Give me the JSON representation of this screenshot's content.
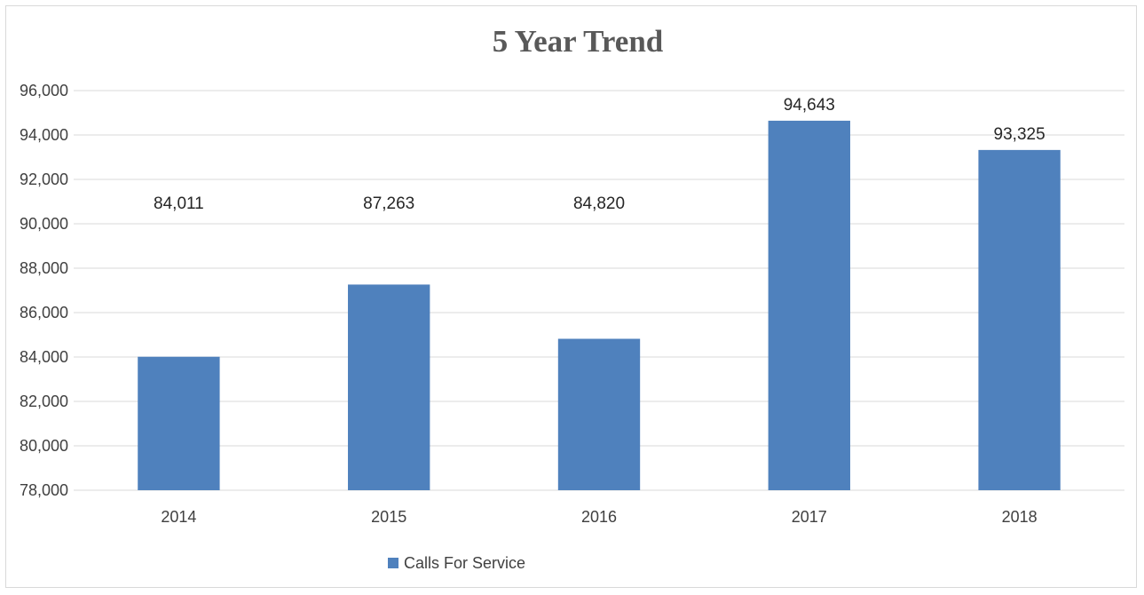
{
  "chart_data": {
    "type": "bar",
    "title": "5 Year Trend",
    "categories": [
      "2014",
      "2015",
      "2016",
      "2017",
      "2018"
    ],
    "series": [
      {
        "name": "Calls For Service",
        "values": [
          84011,
          87263,
          84820,
          94643,
          93325
        ]
      }
    ],
    "data_labels": [
      "84,011",
      "87,263",
      "84,820",
      "94,643",
      "93,325"
    ],
    "yticks": [
      "78,000",
      "80,000",
      "82,000",
      "84,000",
      "86,000",
      "88,000",
      "90,000",
      "92,000",
      "94,000",
      "96,000"
    ],
    "ylim": [
      78000,
      96000
    ],
    "ytick_step": 2000,
    "grid": true,
    "legend_position": "bottom",
    "colors": {
      "bar": "#4F81BD",
      "grid": "#d9d9d9",
      "text": "#404040"
    }
  }
}
